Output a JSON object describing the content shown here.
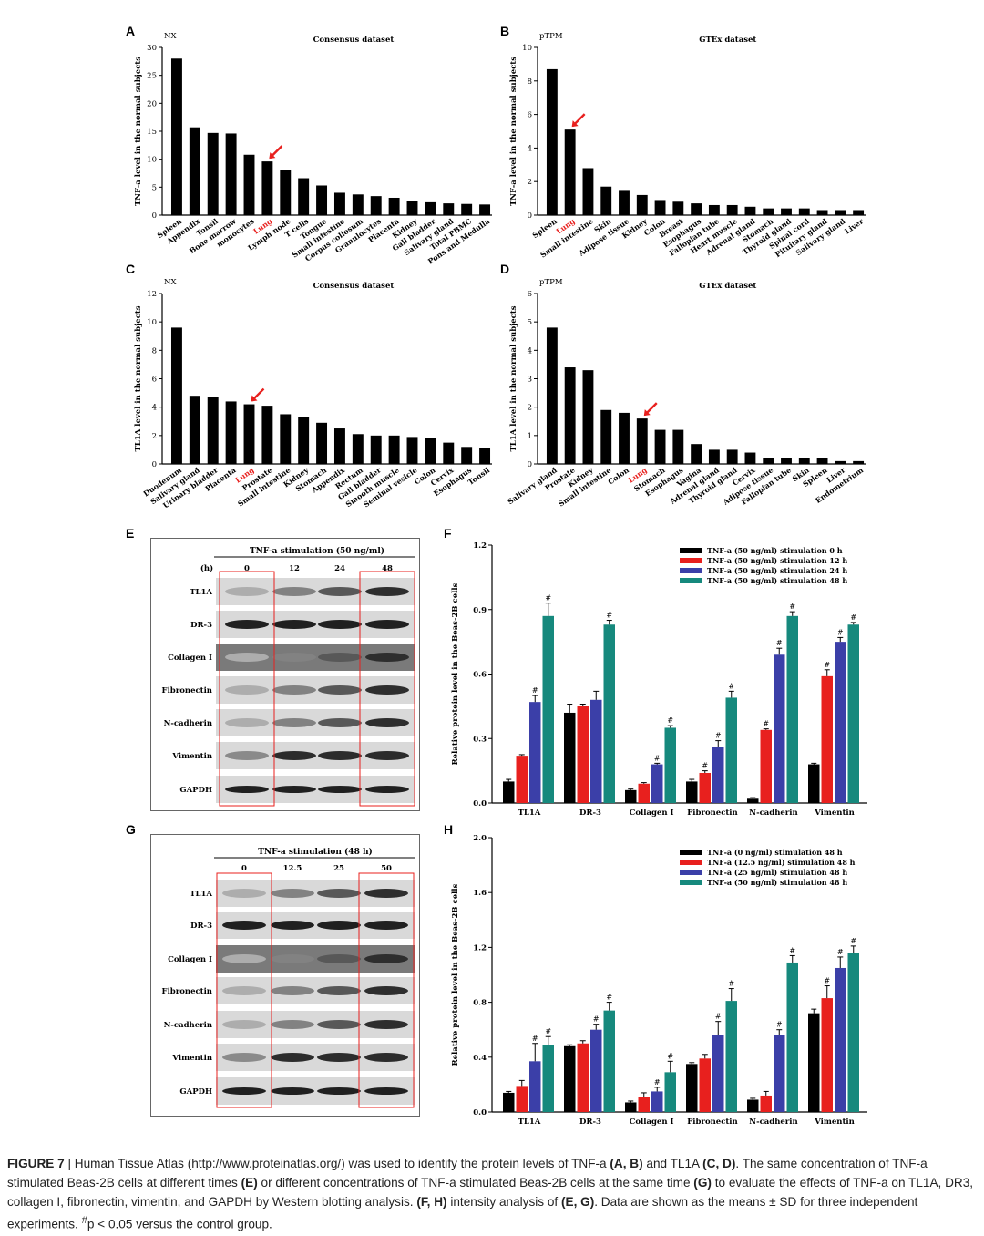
{
  "panel_letters": {
    "A": "A",
    "B": "B",
    "C": "C",
    "D": "D",
    "E": "E",
    "F": "F",
    "G": "G",
    "H": "H"
  },
  "highlight_color": "#e8201e",
  "arrow_color": "#e8201e",
  "chart_data": [
    {
      "id": "A",
      "type": "bar",
      "title": "Consensus dataset",
      "unit": "NX",
      "ylabel": "TNF-a level in the normal subjects",
      "ylim": [
        0,
        30
      ],
      "yticks": [
        0,
        5,
        10,
        15,
        20,
        25,
        30
      ],
      "highlight": "Lung",
      "categories": [
        "Spleen",
        "Appendix",
        "Tonsil",
        "Bone marrow",
        "monocytes",
        "Lung",
        "Lymph node",
        "T cells",
        "Tongue",
        "Small intestine",
        "Corpus collosum",
        "Granulocytes",
        "Placenta",
        "Kidney",
        "Gall bladder",
        "Salivary gland",
        "Total PBMC",
        "Pons and Medulla"
      ],
      "values": [
        28,
        15.7,
        14.7,
        14.6,
        10.8,
        9.6,
        8,
        6.6,
        5.3,
        4,
        3.7,
        3.4,
        3.1,
        2.5,
        2.3,
        2.1,
        2,
        1.9
      ]
    },
    {
      "id": "B",
      "type": "bar",
      "title": "GTEx dataset",
      "unit": "pTPM",
      "ylabel": "TNF-a level in the normal subjects",
      "ylim": [
        0,
        10
      ],
      "yticks": [
        0,
        2,
        4,
        6,
        8,
        10
      ],
      "highlight": "Lung",
      "categories": [
        "Spleen",
        "Lung",
        "Small intestine",
        "Skin",
        "Adipose tissue",
        "Kidney",
        "Colon",
        "Breast",
        "Esophagus",
        "Fallopian tube",
        "Heart muscle",
        "Adrenal gland",
        "Stomach",
        "Thyroid gland",
        "Spinal cord",
        "Pituitary gland",
        "Salivary gland",
        "Liver"
      ],
      "values": [
        8.7,
        5.1,
        2.8,
        1.7,
        1.5,
        1.2,
        0.9,
        0.8,
        0.7,
        0.6,
        0.6,
        0.5,
        0.4,
        0.4,
        0.4,
        0.3,
        0.3,
        0.3
      ]
    },
    {
      "id": "C",
      "type": "bar",
      "title": "Consensus dataset",
      "unit": "NX",
      "ylabel": "TL1A level in the normal subjects",
      "ylim": [
        0,
        12
      ],
      "yticks": [
        0,
        2,
        4,
        6,
        8,
        10,
        12
      ],
      "highlight": "Lung",
      "categories": [
        "Duodenum",
        "Salivary gland",
        "Urinary bladder",
        "Placenta",
        "Lung",
        "Prostate",
        "Small intestine",
        "Kidney",
        "Stomach",
        "Appendix",
        "Rectum",
        "Gall bladder",
        "Smooth muscle",
        "Seminal vesicle",
        "Colon",
        "Cervix",
        "Esophagus",
        "Tonsil"
      ],
      "values": [
        9.6,
        4.8,
        4.7,
        4.4,
        4.2,
        4.1,
        3.5,
        3.3,
        2.9,
        2.5,
        2.1,
        2.0,
        2.0,
        1.9,
        1.8,
        1.5,
        1.2,
        1.1
      ]
    },
    {
      "id": "D",
      "type": "bar",
      "title": "GTEx dataset",
      "unit": "pTPM",
      "ylabel": "TL1A level in the normal subjects",
      "ylim": [
        0,
        6
      ],
      "yticks": [
        0,
        1,
        2,
        3,
        4,
        5,
        6
      ],
      "highlight": "Lung",
      "categories": [
        "Salivary gland",
        "Prostate",
        "Kidney",
        "Small intestine",
        "Colon",
        "Lung",
        "Stomach",
        "Esophagus",
        "Vagina",
        "Adrenal gland",
        "Thyroid gland",
        "Cervix",
        "Adipose tissue",
        "Fallopian tube",
        "Skin",
        "Spleen",
        "Liver",
        "Endometrium"
      ],
      "values": [
        4.8,
        3.4,
        3.3,
        1.9,
        1.8,
        1.6,
        1.2,
        1.2,
        0.7,
        0.5,
        0.5,
        0.4,
        0.2,
        0.2,
        0.2,
        0.2,
        0.1,
        0.1
      ]
    },
    {
      "id": "F",
      "type": "bar",
      "ylabel": "Relative protein level in the Beas-2B cells",
      "ylim": [
        0,
        1.2
      ],
      "yticks": [
        "0.0",
        "0.3",
        "0.6",
        "0.9",
        "1.2"
      ],
      "categories": [
        "TL1A",
        "DR-3",
        "Collagen I",
        "Fibronectin",
        "N-cadherin",
        "Vimentin"
      ],
      "series": [
        {
          "name": "TNF-a (50 ng/ml) stimulation 0 h",
          "color": "#000000",
          "values": [
            0.1,
            0.42,
            0.06,
            0.1,
            0.02,
            0.18
          ],
          "errors": [
            0.01,
            0.04,
            0.005,
            0.01,
            0.005,
            0.005
          ]
        },
        {
          "name": "TNF-a (50 ng/ml) stimulation 12 h",
          "color": "#e8201e",
          "values": [
            0.22,
            0.45,
            0.09,
            0.14,
            0.34,
            0.59
          ],
          "errors": [
            0.005,
            0.01,
            0.005,
            0.01,
            0.005,
            0.03
          ]
        },
        {
          "name": "TNF-a (50 ng/ml) stimulation 24 h",
          "color": "#3b3fa8",
          "values": [
            0.47,
            0.48,
            0.18,
            0.26,
            0.69,
            0.75
          ],
          "errors": [
            0.03,
            0.04,
            0.005,
            0.03,
            0.03,
            0.02
          ]
        },
        {
          "name": "TNF-a (50 ng/ml) stimulation 48 h",
          "color": "#16897d",
          "values": [
            0.87,
            0.83,
            0.35,
            0.49,
            0.87,
            0.83
          ],
          "errors": [
            0.06,
            0.02,
            0.01,
            0.03,
            0.02,
            0.01
          ]
        }
      ],
      "sig": [
        [
          false,
          false,
          true,
          true
        ],
        [
          false,
          false,
          false,
          true
        ],
        [
          false,
          false,
          true,
          true
        ],
        [
          false,
          true,
          true,
          true
        ],
        [
          false,
          true,
          true,
          true
        ],
        [
          false,
          true,
          true,
          true
        ]
      ]
    },
    {
      "id": "H",
      "type": "bar",
      "ylabel": "Relative protein level in the Beas-2B cells",
      "ylim": [
        0,
        2.0
      ],
      "yticks": [
        "0.0",
        "0.4",
        "0.8",
        "1.2",
        "1.6",
        "2.0"
      ],
      "categories": [
        "TL1A",
        "DR-3",
        "Collagen I",
        "Fibronectin",
        "N-cadherin",
        "Vimentin"
      ],
      "series": [
        {
          "name": "TNF-a (0 ng/ml) stimulation 48 h",
          "color": "#000000",
          "values": [
            0.14,
            0.48,
            0.07,
            0.35,
            0.09,
            0.72
          ],
          "errors": [
            0.01,
            0.01,
            0.01,
            0.01,
            0.01,
            0.03
          ]
        },
        {
          "name": "TNF-a (12.5 ng/ml) stimulation 48 h",
          "color": "#e8201e",
          "values": [
            0.19,
            0.5,
            0.11,
            0.39,
            0.12,
            0.83
          ],
          "errors": [
            0.04,
            0.02,
            0.03,
            0.03,
            0.03,
            0.09
          ]
        },
        {
          "name": "TNF-a (25 ng/ml) stimulation 48 h",
          "color": "#3b3fa8",
          "values": [
            0.37,
            0.6,
            0.15,
            0.56,
            0.56,
            1.05
          ],
          "errors": [
            0.13,
            0.04,
            0.03,
            0.1,
            0.04,
            0.08
          ]
        },
        {
          "name": "TNF-a (50 ng/ml) stimulation 48 h",
          "color": "#16897d",
          "values": [
            0.49,
            0.74,
            0.29,
            0.81,
            1.09,
            1.16
          ],
          "errors": [
            0.06,
            0.06,
            0.08,
            0.09,
            0.05,
            0.05
          ]
        }
      ],
      "sig": [
        [
          false,
          false,
          true,
          true
        ],
        [
          false,
          false,
          true,
          true
        ],
        [
          false,
          false,
          true,
          true
        ],
        [
          false,
          false,
          true,
          true
        ],
        [
          false,
          false,
          true,
          true
        ],
        [
          false,
          true,
          true,
          true
        ]
      ]
    }
  ],
  "sig_marker": "#",
  "blot_E": {
    "header": "TNF-a stimulation (50 ng/ml)",
    "unit": "(h)",
    "lanes": [
      "0",
      "12",
      "24",
      "48"
    ],
    "proteins": [
      "TL1A",
      "DR-3",
      "Collagen I",
      "Fibronectin",
      "N-cadherin",
      "Vimentin",
      "GAPDH"
    ]
  },
  "blot_G": {
    "header": "TNF-a stimulation (48 h)",
    "lanes": [
      "0",
      "12.5",
      "25",
      "50"
    ],
    "proteins": [
      "TL1A",
      "DR-3",
      "Collagen I",
      "Fibronectin",
      "N-cadherin",
      "Vimentin",
      "GAPDH"
    ]
  },
  "caption": {
    "lead": "FIGURE 7",
    "sep": " | ",
    "p1": "Human Tissue Atlas (http://www.proteinatlas.org/) was used to identify the protein levels of TNF-a ",
    "r1": "(A, B)",
    "p2": " and TL1A ",
    "r2": "(C, D)",
    "p3": ". The same concentration of TNF-a stimulated Beas-2B cells at different times ",
    "r3": "(E)",
    "p4": " or different concentrations of TNF-a stimulated Beas-2B cells at the same time ",
    "r4": "(G)",
    "p5": " to evaluate the effects of TNF-a on TL1A, DR3, collagen I, fibronectin, vimentin, and GAPDH by Western blotting analysis. ",
    "r5": "(F, H)",
    "p6": " intensity analysis of ",
    "r6": "(E, G)",
    "p7": ". Data are shown as the means ± SD for three independent experiments. ",
    "sup": "#",
    "p8": "p < 0.05 versus the control group."
  }
}
